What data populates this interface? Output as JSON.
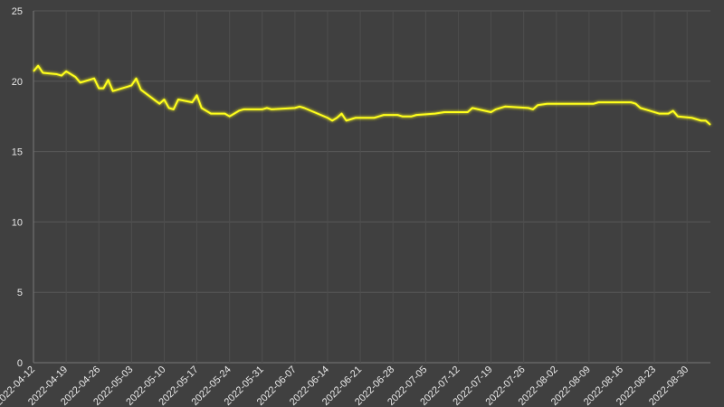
{
  "chart_data": {
    "type": "line",
    "x": [
      "2022-04-12",
      "2022-04-13",
      "2022-04-14",
      "2022-04-17",
      "2022-04-18",
      "2022-04-19",
      "2022-04-20",
      "2022-04-21",
      "2022-04-22",
      "2022-04-25",
      "2022-04-26",
      "2022-04-27",
      "2022-04-28",
      "2022-04-29",
      "2022-05-02",
      "2022-05-03",
      "2022-05-04",
      "2022-05-05",
      "2022-05-09",
      "2022-05-10",
      "2022-05-11",
      "2022-05-12",
      "2022-05-13",
      "2022-05-16",
      "2022-05-17",
      "2022-05-18",
      "2022-05-19",
      "2022-05-20",
      "2022-05-23",
      "2022-05-24",
      "2022-05-25",
      "2022-05-26",
      "2022-05-27",
      "2022-05-30",
      "2022-05-31",
      "2022-06-01",
      "2022-06-02",
      "2022-06-07",
      "2022-06-08",
      "2022-06-09",
      "2022-06-14",
      "2022-06-15",
      "2022-06-16",
      "2022-06-17",
      "2022-06-18",
      "2022-06-20",
      "2022-06-23",
      "2022-06-24",
      "2022-06-25",
      "2022-06-26",
      "2022-06-29",
      "2022-06-30",
      "2022-07-01",
      "2022-07-02",
      "2022-07-03",
      "2022-07-07",
      "2022-07-09",
      "2022-07-14",
      "2022-07-15",
      "2022-07-19",
      "2022-07-20",
      "2022-07-22",
      "2022-07-27",
      "2022-07-28",
      "2022-07-29",
      "2022-07-31",
      "2022-08-04",
      "2022-08-05",
      "2022-08-10",
      "2022-08-11",
      "2022-08-18",
      "2022-08-19",
      "2022-08-20",
      "2022-08-22",
      "2022-08-24",
      "2022-08-26",
      "2022-08-27",
      "2022-08-28",
      "2022-08-31",
      "2022-09-02",
      "2022-09-03",
      "2022-09-04"
    ],
    "series": [
      {
        "color": "#ffff1a",
        "values": [
          20.7,
          21.1,
          20.6,
          20.5,
          20.4,
          20.7,
          20.5,
          20.3,
          19.9,
          20.2,
          19.5,
          19.5,
          20.1,
          19.3,
          19.6,
          19.7,
          20.2,
          19.4,
          18.4,
          18.7,
          18.1,
          18.0,
          18.7,
          18.5,
          19.0,
          18.1,
          17.9,
          17.7,
          17.7,
          17.5,
          17.7,
          17.9,
          18.0,
          18.0,
          18.0,
          18.1,
          18.0,
          18.1,
          18.2,
          18.1,
          17.4,
          17.2,
          17.4,
          17.7,
          17.2,
          17.4,
          17.4,
          17.4,
          17.5,
          17.6,
          17.6,
          17.5,
          17.5,
          17.5,
          17.6,
          17.7,
          17.8,
          17.8,
          18.1,
          17.8,
          18.0,
          18.2,
          18.1,
          18.0,
          18.3,
          18.4,
          18.4,
          18.4,
          18.4,
          18.5,
          18.5,
          18.4,
          18.1,
          17.9,
          17.7,
          17.7,
          17.9,
          17.5,
          17.4,
          17.2,
          17.2,
          16.9
        ]
      }
    ],
    "xlim": [
      "2022-04-12",
      "2022-09-04"
    ],
    "xticks": [
      "2022-04-12",
      "2022-04-19",
      "2022-04-26",
      "2022-05-03",
      "2022-05-10",
      "2022-05-17",
      "2022-05-24",
      "2022-05-31",
      "2022-06-07",
      "2022-06-14",
      "2022-06-21",
      "2022-06-28",
      "2022-07-05",
      "2022-07-12",
      "2022-07-19",
      "2022-07-26",
      "2022-08-02",
      "2022-08-09",
      "2022-08-16",
      "2022-08-23",
      "2022-08-30"
    ],
    "ylim": [
      0,
      25
    ],
    "yticks": [
      0,
      5,
      10,
      15,
      20,
      25
    ],
    "grid": true
  }
}
